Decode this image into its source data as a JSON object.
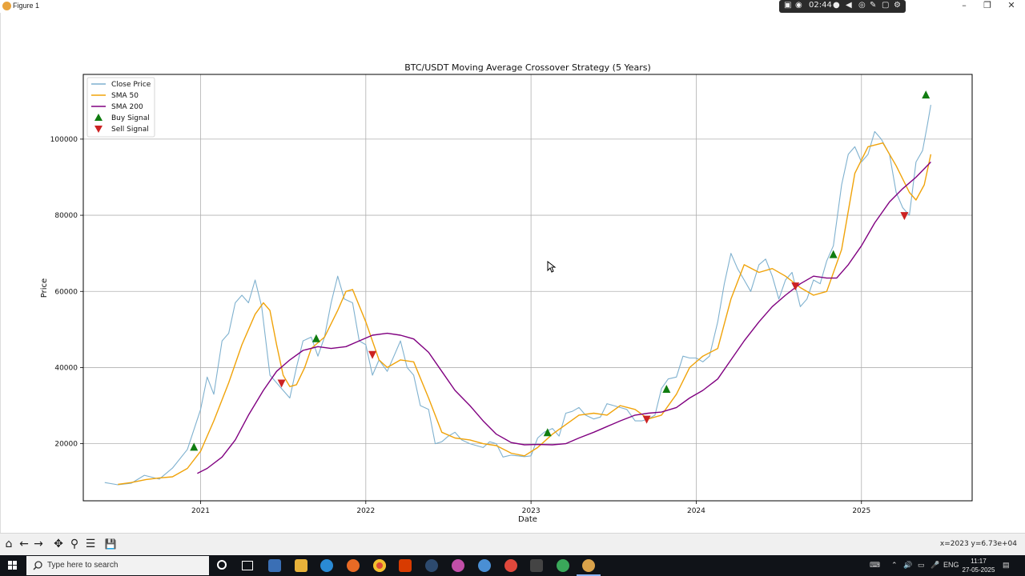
{
  "window": {
    "title": "Figure 1",
    "controls": {
      "minimize": "–",
      "maximize": "❐",
      "close": "✕"
    },
    "recorder_time": "02:44"
  },
  "chart_data": {
    "type": "line",
    "title": "BTC/USDT Moving Average Crossover Strategy (5 Years)",
    "xlabel": "Date",
    "ylabel": "Price",
    "xlim": [
      2020.29,
      2025.67
    ],
    "ylim": [
      5000,
      117000
    ],
    "x_ticks": [
      2021,
      2022,
      2023,
      2024,
      2025
    ],
    "x_tick_labels": [
      "2021",
      "2022",
      "2023",
      "2024",
      "2025"
    ],
    "y_ticks": [
      20000,
      40000,
      60000,
      80000,
      100000
    ],
    "y_tick_labels": [
      "20000",
      "40000",
      "60000",
      "80000",
      "100000"
    ],
    "grid": true,
    "legend_position": "top-left",
    "legend": [
      {
        "label": "Close Price",
        "kind": "line",
        "color": "#7fb1cf"
      },
      {
        "label": "SMA 50",
        "kind": "line",
        "color": "#f0a30a"
      },
      {
        "label": "SMA 200",
        "kind": "line",
        "color": "#800080"
      },
      {
        "label": "Buy Signal",
        "kind": "up-triangle",
        "color": "#107c10"
      },
      {
        "label": "Sell Signal",
        "kind": "down-triangle",
        "color": "#cc2222"
      }
    ],
    "series": [
      {
        "name": "Close Price",
        "color": "#7fb1cf",
        "points": [
          [
            2020.42,
            9800
          ],
          [
            2020.5,
            9200
          ],
          [
            2020.58,
            9600
          ],
          [
            2020.66,
            11700
          ],
          [
            2020.75,
            10700
          ],
          [
            2020.83,
            13600
          ],
          [
            2020.92,
            18500
          ],
          [
            2021.0,
            29000
          ],
          [
            2021.04,
            37500
          ],
          [
            2021.08,
            33000
          ],
          [
            2021.13,
            47000
          ],
          [
            2021.17,
            49000
          ],
          [
            2021.21,
            57000
          ],
          [
            2021.25,
            59000
          ],
          [
            2021.29,
            57000
          ],
          [
            2021.33,
            63000
          ],
          [
            2021.37,
            56000
          ],
          [
            2021.42,
            38000
          ],
          [
            2021.46,
            36000
          ],
          [
            2021.5,
            34000
          ],
          [
            2021.54,
            32000
          ],
          [
            2021.58,
            40000
          ],
          [
            2021.62,
            47000
          ],
          [
            2021.67,
            48000
          ],
          [
            2021.71,
            43000
          ],
          [
            2021.75,
            48000
          ],
          [
            2021.79,
            57000
          ],
          [
            2021.83,
            64000
          ],
          [
            2021.87,
            58000
          ],
          [
            2021.92,
            57000
          ],
          [
            2021.96,
            47000
          ],
          [
            2022.0,
            46000
          ],
          [
            2022.04,
            38000
          ],
          [
            2022.08,
            42000
          ],
          [
            2022.13,
            39000
          ],
          [
            2022.17,
            43000
          ],
          [
            2022.21,
            47000
          ],
          [
            2022.25,
            40000
          ],
          [
            2022.29,
            38000
          ],
          [
            2022.33,
            30000
          ],
          [
            2022.38,
            29000
          ],
          [
            2022.42,
            20000
          ],
          [
            2022.46,
            20500
          ],
          [
            2022.5,
            22000
          ],
          [
            2022.54,
            23000
          ],
          [
            2022.58,
            21000
          ],
          [
            2022.63,
            20000
          ],
          [
            2022.67,
            19500
          ],
          [
            2022.71,
            19000
          ],
          [
            2022.75,
            20500
          ],
          [
            2022.79,
            20000
          ],
          [
            2022.83,
            16500
          ],
          [
            2022.88,
            17000
          ],
          [
            2022.92,
            16800
          ],
          [
            2022.96,
            16600
          ],
          [
            2023.0,
            16800
          ],
          [
            2023.04,
            21500
          ],
          [
            2023.08,
            23000
          ],
          [
            2023.13,
            24000
          ],
          [
            2023.17,
            22000
          ],
          [
            2023.21,
            28000
          ],
          [
            2023.25,
            28500
          ],
          [
            2023.29,
            29500
          ],
          [
            2023.33,
            27500
          ],
          [
            2023.38,
            26500
          ],
          [
            2023.42,
            27000
          ],
          [
            2023.46,
            30500
          ],
          [
            2023.5,
            30000
          ],
          [
            2023.54,
            29500
          ],
          [
            2023.58,
            29000
          ],
          [
            2023.63,
            26000
          ],
          [
            2023.67,
            26000
          ],
          [
            2023.71,
            26500
          ],
          [
            2023.75,
            27500
          ],
          [
            2023.79,
            34500
          ],
          [
            2023.83,
            37000
          ],
          [
            2023.88,
            37500
          ],
          [
            2023.92,
            43000
          ],
          [
            2023.96,
            42500
          ],
          [
            2024.0,
            42500
          ],
          [
            2024.04,
            41500
          ],
          [
            2024.08,
            43000
          ],
          [
            2024.13,
            52000
          ],
          [
            2024.17,
            62000
          ],
          [
            2024.21,
            70000
          ],
          [
            2024.25,
            66000
          ],
          [
            2024.29,
            63000
          ],
          [
            2024.33,
            60000
          ],
          [
            2024.38,
            67000
          ],
          [
            2024.42,
            68500
          ],
          [
            2024.46,
            64000
          ],
          [
            2024.5,
            58000
          ],
          [
            2024.54,
            63000
          ],
          [
            2024.58,
            65000
          ],
          [
            2024.63,
            56000
          ],
          [
            2024.67,
            58000
          ],
          [
            2024.71,
            63000
          ],
          [
            2024.75,
            62000
          ],
          [
            2024.79,
            68000
          ],
          [
            2024.83,
            72000
          ],
          [
            2024.88,
            88000
          ],
          [
            2024.92,
            96000
          ],
          [
            2024.96,
            98000
          ],
          [
            2025.0,
            94000
          ],
          [
            2025.04,
            96000
          ],
          [
            2025.08,
            102000
          ],
          [
            2025.12,
            100000
          ],
          [
            2025.17,
            96000
          ],
          [
            2025.21,
            86000
          ],
          [
            2025.25,
            82000
          ],
          [
            2025.29,
            80000
          ],
          [
            2025.33,
            94000
          ],
          [
            2025.37,
            97000
          ],
          [
            2025.4,
            104000
          ],
          [
            2025.42,
            109000
          ]
        ]
      },
      {
        "name": "SMA 50",
        "color": "#f0a30a",
        "points": [
          [
            2020.5,
            9300
          ],
          [
            2020.58,
            9800
          ],
          [
            2020.67,
            10600
          ],
          [
            2020.75,
            11000
          ],
          [
            2020.83,
            11300
          ],
          [
            2020.92,
            13500
          ],
          [
            2021.0,
            18000
          ],
          [
            2021.08,
            26000
          ],
          [
            2021.17,
            36000
          ],
          [
            2021.25,
            46000
          ],
          [
            2021.33,
            54000
          ],
          [
            2021.38,
            57000
          ],
          [
            2021.42,
            55000
          ],
          [
            2021.46,
            46000
          ],
          [
            2021.5,
            38000
          ],
          [
            2021.54,
            35000
          ],
          [
            2021.58,
            35500
          ],
          [
            2021.63,
            40000
          ],
          [
            2021.67,
            45000
          ],
          [
            2021.75,
            48000
          ],
          [
            2021.83,
            55000
          ],
          [
            2021.88,
            60000
          ],
          [
            2021.92,
            60500
          ],
          [
            2022.0,
            52000
          ],
          [
            2022.08,
            42000
          ],
          [
            2022.13,
            40000
          ],
          [
            2022.21,
            42000
          ],
          [
            2022.29,
            41500
          ],
          [
            2022.38,
            32000
          ],
          [
            2022.46,
            23000
          ],
          [
            2022.54,
            21500
          ],
          [
            2022.63,
            21000
          ],
          [
            2022.71,
            20000
          ],
          [
            2022.79,
            19500
          ],
          [
            2022.88,
            17500
          ],
          [
            2022.96,
            16800
          ],
          [
            2023.04,
            19000
          ],
          [
            2023.13,
            22500
          ],
          [
            2023.21,
            25000
          ],
          [
            2023.29,
            27500
          ],
          [
            2023.38,
            28000
          ],
          [
            2023.46,
            27500
          ],
          [
            2023.54,
            30000
          ],
          [
            2023.63,
            29000
          ],
          [
            2023.71,
            26500
          ],
          [
            2023.79,
            27500
          ],
          [
            2023.88,
            33000
          ],
          [
            2023.96,
            40000
          ],
          [
            2024.04,
            43000
          ],
          [
            2024.13,
            45000
          ],
          [
            2024.21,
            58000
          ],
          [
            2024.29,
            67000
          ],
          [
            2024.38,
            65000
          ],
          [
            2024.46,
            66000
          ],
          [
            2024.54,
            64000
          ],
          [
            2024.63,
            61000
          ],
          [
            2024.71,
            59000
          ],
          [
            2024.79,
            60000
          ],
          [
            2024.88,
            71000
          ],
          [
            2024.96,
            91000
          ],
          [
            2025.04,
            98000
          ],
          [
            2025.13,
            99000
          ],
          [
            2025.21,
            93000
          ],
          [
            2025.29,
            86000
          ],
          [
            2025.33,
            84000
          ],
          [
            2025.38,
            88000
          ],
          [
            2025.42,
            96000
          ]
        ]
      },
      {
        "name": "SMA 200",
        "color": "#800080",
        "points": [
          [
            2020.98,
            12200
          ],
          [
            2021.04,
            13500
          ],
          [
            2021.13,
            16500
          ],
          [
            2021.21,
            21000
          ],
          [
            2021.29,
            27500
          ],
          [
            2021.38,
            34000
          ],
          [
            2021.46,
            39000
          ],
          [
            2021.54,
            42000
          ],
          [
            2021.62,
            44500
          ],
          [
            2021.71,
            45500
          ],
          [
            2021.79,
            45000
          ],
          [
            2021.88,
            45500
          ],
          [
            2021.96,
            47000
          ],
          [
            2022.04,
            48500
          ],
          [
            2022.13,
            49000
          ],
          [
            2022.21,
            48500
          ],
          [
            2022.29,
            47500
          ],
          [
            2022.38,
            44000
          ],
          [
            2022.46,
            39000
          ],
          [
            2022.54,
            34000
          ],
          [
            2022.63,
            30000
          ],
          [
            2022.71,
            26000
          ],
          [
            2022.79,
            22500
          ],
          [
            2022.88,
            20300
          ],
          [
            2022.96,
            19700
          ],
          [
            2023.04,
            19800
          ],
          [
            2023.13,
            19700
          ],
          [
            2023.21,
            20000
          ],
          [
            2023.29,
            21500
          ],
          [
            2023.38,
            23000
          ],
          [
            2023.46,
            24500
          ],
          [
            2023.54,
            26000
          ],
          [
            2023.63,
            27500
          ],
          [
            2023.71,
            28000
          ],
          [
            2023.79,
            28300
          ],
          [
            2023.88,
            29500
          ],
          [
            2023.96,
            32000
          ],
          [
            2024.04,
            34000
          ],
          [
            2024.13,
            37000
          ],
          [
            2024.21,
            42000
          ],
          [
            2024.29,
            47000
          ],
          [
            2024.38,
            52000
          ],
          [
            2024.46,
            56000
          ],
          [
            2024.54,
            59000
          ],
          [
            2024.63,
            62000
          ],
          [
            2024.71,
            64000
          ],
          [
            2024.79,
            63500
          ],
          [
            2024.85,
            63500
          ],
          [
            2024.92,
            67000
          ],
          [
            2025.0,
            72000
          ],
          [
            2025.08,
            78000
          ],
          [
            2025.17,
            83500
          ],
          [
            2025.25,
            87000
          ],
          [
            2025.33,
            90000
          ],
          [
            2025.42,
            94000
          ]
        ]
      }
    ],
    "buy_signals": [
      [
        2020.96,
        19000
      ],
      [
        2021.7,
        47500
      ],
      [
        2023.1,
        22800
      ],
      [
        2023.82,
        34200
      ],
      [
        2024.83,
        69600
      ],
      [
        2025.39,
        111500
      ]
    ],
    "sell_signals": [
      [
        2021.49,
        36000
      ],
      [
        2022.04,
        43500
      ],
      [
        2023.7,
        26500
      ],
      [
        2024.6,
        61500
      ],
      [
        2025.26,
        80000
      ]
    ]
  },
  "toolbar": {
    "buttons": [
      {
        "name": "home-button",
        "glyph": "⌂"
      },
      {
        "name": "back-button",
        "glyph": "←"
      },
      {
        "name": "forward-button",
        "glyph": "→"
      },
      {
        "name": "pan-button",
        "glyph": "✥"
      },
      {
        "name": "zoom-button",
        "glyph": "⚲"
      },
      {
        "name": "subplots-button",
        "glyph": "☰"
      },
      {
        "name": "save-button",
        "glyph": "💾"
      }
    ],
    "coordinates": "x=2023 y=6.73e+04"
  },
  "taskbar": {
    "search_placeholder": "Type here to search",
    "lang": "ENG",
    "time": "11:17",
    "date": "27-05-2025"
  }
}
